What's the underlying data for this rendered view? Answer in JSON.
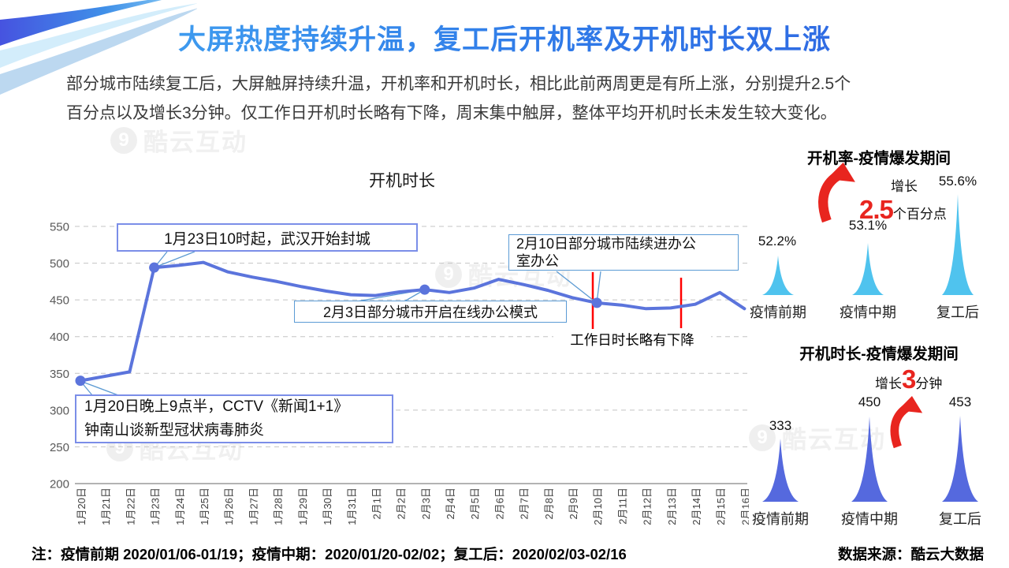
{
  "title": "大屏热度持续升温，复工后开机率及开机时长双上涨",
  "intro": {
    "line1": "部分城市陆续复工后，大屏触屏持续升温，开机率和开机时长，相比此前两周更是有所上涨，分别提升2.5个",
    "line2": "百分点以及增长3分钟。仅工作日开机时长略有下降，周末集中触屏，整体平均开机时长未发生较大变化。"
  },
  "watermark": "酷云互动",
  "colors": {
    "title_blue": "#2f7ae8",
    "line_blue": "#5b74dc",
    "event_red": "#ff0000",
    "accent_red": "#e8251f",
    "spike_skyblue": "#4fc3ee",
    "spike_indigo": "#5569de",
    "grid_gray": "#c4c4c4"
  },
  "chart_data": [
    {
      "type": "line",
      "title": "开机时长",
      "x": [
        "1月20日",
        "1月21日",
        "1月22日",
        "1月23日",
        "1月24日",
        "1月25日",
        "1月26日",
        "1月27日",
        "1月28日",
        "1月29日",
        "1月30日",
        "1月31日",
        "2月1日",
        "2月2日",
        "2月3日",
        "2月4日",
        "2月5日",
        "2月6日",
        "2月7日",
        "2月8日",
        "2月9日",
        "2月10日",
        "2月11日",
        "2月12日",
        "2月13日",
        "2月14日",
        "2月15日",
        "2月16日"
      ],
      "values": [
        340,
        346,
        352,
        494,
        497,
        501,
        488,
        481,
        475,
        468,
        462,
        457,
        456,
        461,
        464,
        460,
        466,
        478,
        471,
        463,
        453,
        446,
        443,
        438,
        439,
        444,
        460,
        438
      ],
      "unit": "分钟",
      "ylim": [
        200,
        560
      ],
      "yticks": [
        550,
        500,
        450,
        400,
        350,
        300,
        250,
        200
      ],
      "grid": "dashed-horizontal",
      "marker_dates": [
        "1月20日",
        "1月23日",
        "2月3日",
        "2月10日"
      ],
      "event_line_dates": [
        "2月10日",
        "2月13日"
      ],
      "annotations": {
        "wuhan": "1月23日10时起，武汉开始封城",
        "online_office": "2月3日部分城市开启在线办公模式",
        "back_office_l1": "2月10日部分城市陆续进办公",
        "back_office_l2": "室办公",
        "workday": "工作日时长略有下降",
        "cctv_l1": "1月20日晚上9点半，CCTV《新闻1+1》",
        "cctv_l2": "钟南山谈新型冠状病毒肺炎"
      }
    },
    {
      "type": "area-spike",
      "title": "开机率-疫情爆发期间",
      "categories": [
        "疫情前期",
        "疫情中期",
        "复工后"
      ],
      "values": [
        52.2,
        53.1,
        55.6
      ],
      "value_labels": [
        "52.2%",
        "53.1%",
        "55.6%"
      ],
      "growth": {
        "label": "增长",
        "value": "2.5",
        "unit": "个百分点"
      },
      "color": "#4fc3ee"
    },
    {
      "type": "area-spike",
      "title": "开机时长-疫情爆发期间",
      "categories": [
        "疫情前期",
        "疫情中期",
        "复工后"
      ],
      "values": [
        333,
        450,
        453
      ],
      "value_labels": [
        "333",
        "450",
        "453"
      ],
      "growth": {
        "label": "增长",
        "value": "3",
        "unit": "分钟"
      },
      "color": "#5569de"
    }
  ],
  "footer": {
    "note": "注：疫情前期 2020/01/06-01/19；疫情中期：2020/01/20-02/02；复工后：2020/02/03-02/16",
    "source": "数据来源：酷云大数据"
  }
}
